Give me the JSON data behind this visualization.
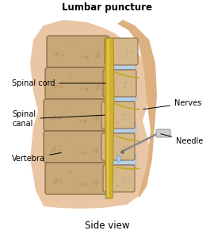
{
  "title": "Lumbar puncture",
  "subtitle": "Side view",
  "bg_color": "#ffffff",
  "labels": {
    "spinal_cord": "Spinal cord",
    "nerves": "Nerves",
    "spinal_canal": "Spinal\ncanal",
    "vertebra": "Vertebra",
    "needle": "Needle"
  },
  "vertebra_body_color": "#c8a878",
  "vertebra_body_color2": "#d4b88a",
  "disc_color": "#b8d0e8",
  "disc_color2": "#c8ddf0",
  "spinal_cord_color": "#d4b030",
  "spinal_cord_highlight": "#e8cc50",
  "skin_color": "#e8c09a",
  "skin_edge_color": "#d4a878",
  "needle_color": "#888888",
  "needle_barrel_color": "#aaaaaa",
  "outline_color": "#806040",
  "fluid_drop_color": "#aaccee",
  "title_fontsize": 8.5,
  "label_fontsize": 7,
  "figsize": [
    2.7,
    3.0
  ],
  "dpi": 100
}
